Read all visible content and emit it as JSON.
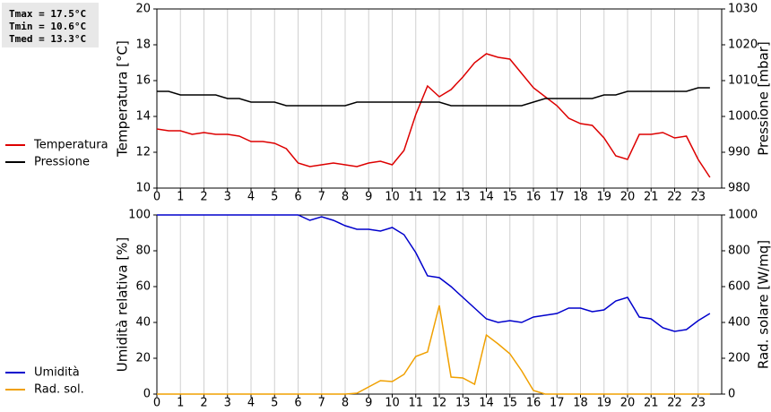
{
  "stats": [
    "Tmax = 17.5°C",
    "Tmin = 10.6°C",
    "Tmed = 13.3°C"
  ],
  "chart_data": [
    {
      "type": "line",
      "x": [
        0,
        0.5,
        1,
        1.5,
        2,
        2.5,
        3,
        3.5,
        4,
        4.5,
        5,
        5.5,
        6,
        6.5,
        7,
        7.5,
        8,
        8.5,
        9,
        9.5,
        10,
        10.5,
        11,
        11.5,
        12,
        12.5,
        13,
        13.5,
        14,
        14.5,
        15,
        15.5,
        16,
        16.5,
        17,
        17.5,
        18,
        18.5,
        19,
        19.5,
        20,
        20.5,
        21,
        21.5,
        22,
        22.5,
        23,
        23.5
      ],
      "xlim": [
        0,
        24
      ],
      "xticks": [
        0,
        1,
        2,
        3,
        4,
        5,
        6,
        7,
        8,
        9,
        10,
        11,
        12,
        13,
        14,
        15,
        16,
        17,
        18,
        19,
        20,
        21,
        22,
        23
      ],
      "ylabel": "Temperatura [°C]",
      "y2label": "Pressione [mbar]",
      "ylim": [
        10,
        20
      ],
      "yticks": [
        10,
        12,
        14,
        16,
        18,
        20
      ],
      "y2lim": [
        980,
        1030
      ],
      "y2ticks": [
        980,
        990,
        1000,
        1010,
        1020,
        1030
      ],
      "grid": true,
      "series": [
        {
          "name": "Temperatura",
          "color": "#dd0000",
          "values": [
            13.3,
            13.2,
            13.2,
            13.0,
            13.1,
            13.0,
            13.0,
            12.9,
            12.6,
            12.6,
            12.5,
            12.2,
            11.4,
            11.2,
            11.3,
            11.4,
            11.3,
            11.2,
            11.4,
            11.5,
            11.3,
            12.1,
            14.1,
            15.7,
            15.1,
            15.5,
            16.2,
            17.0,
            17.5,
            17.3,
            17.2,
            16.4,
            15.6,
            15.1,
            14.6,
            13.9,
            13.6,
            13.5,
            12.8,
            11.8,
            11.6,
            13.0,
            13.0,
            13.1,
            12.8,
            12.9,
            11.6,
            10.6
          ]
        },
        {
          "name": "Pressione",
          "color": "#000000",
          "axis": "y2",
          "values": [
            1007,
            1007,
            1006,
            1006,
            1006,
            1006,
            1005,
            1005,
            1004,
            1004,
            1004,
            1003,
            1003,
            1003,
            1003,
            1003,
            1003,
            1004,
            1004,
            1004,
            1004,
            1004,
            1004,
            1004,
            1004,
            1003,
            1003,
            1003,
            1003,
            1003,
            1003,
            1003,
            1004,
            1005,
            1005,
            1005,
            1005,
            1005,
            1006,
            1006,
            1007,
            1007,
            1007,
            1007,
            1007,
            1007,
            1008,
            1008
          ]
        }
      ]
    },
    {
      "type": "line",
      "x": [
        0,
        0.5,
        1,
        1.5,
        2,
        2.5,
        3,
        3.5,
        4,
        4.5,
        5,
        5.5,
        6,
        6.5,
        7,
        7.5,
        8,
        8.5,
        9,
        9.5,
        10,
        10.5,
        11,
        11.5,
        12,
        12.5,
        13,
        13.5,
        14,
        14.5,
        15,
        15.5,
        16,
        16.5,
        17,
        17.5,
        18,
        18.5,
        19,
        19.5,
        20,
        20.5,
        21,
        21.5,
        22,
        22.5,
        23,
        23.5
      ],
      "xlim": [
        0,
        24
      ],
      "xticks": [
        0,
        1,
        2,
        3,
        4,
        5,
        6,
        7,
        8,
        9,
        10,
        11,
        12,
        13,
        14,
        15,
        16,
        17,
        18,
        19,
        20,
        21,
        22,
        23
      ],
      "ylabel": "Umidità relativa [%]",
      "y2label": "Rad. solare [W/mq]",
      "ylim": [
        0,
        100
      ],
      "yticks": [
        0,
        20,
        40,
        60,
        80,
        100
      ],
      "y2lim": [
        0,
        1000
      ],
      "y2ticks": [
        0,
        200,
        400,
        600,
        800,
        1000
      ],
      "grid": true,
      "series": [
        {
          "name": "Umidità",
          "color": "#0000cc",
          "values": [
            100,
            100,
            100,
            100,
            100,
            100,
            100,
            100,
            100,
            100,
            100,
            100,
            100,
            97,
            99,
            97,
            94,
            92,
            92,
            91,
            93,
            89,
            79,
            66,
            65,
            60,
            54,
            48,
            42,
            40,
            41,
            40,
            43,
            44,
            45,
            48,
            48,
            46,
            47,
            52,
            54,
            43,
            42,
            37,
            35,
            36,
            41,
            45
          ]
        },
        {
          "name": "Rad. sol.",
          "color": "#f0a000",
          "axis": "y2",
          "values": [
            0,
            0,
            0,
            0,
            0,
            0,
            0,
            0,
            0,
            0,
            0,
            0,
            0,
            0,
            0,
            0,
            0,
            5,
            40,
            75,
            70,
            110,
            210,
            235,
            495,
            95,
            90,
            55,
            330,
            280,
            225,
            130,
            20,
            0,
            0,
            0,
            0,
            0,
            0,
            0,
            0,
            0,
            0,
            0,
            0,
            0,
            0,
            0
          ]
        }
      ]
    }
  ]
}
